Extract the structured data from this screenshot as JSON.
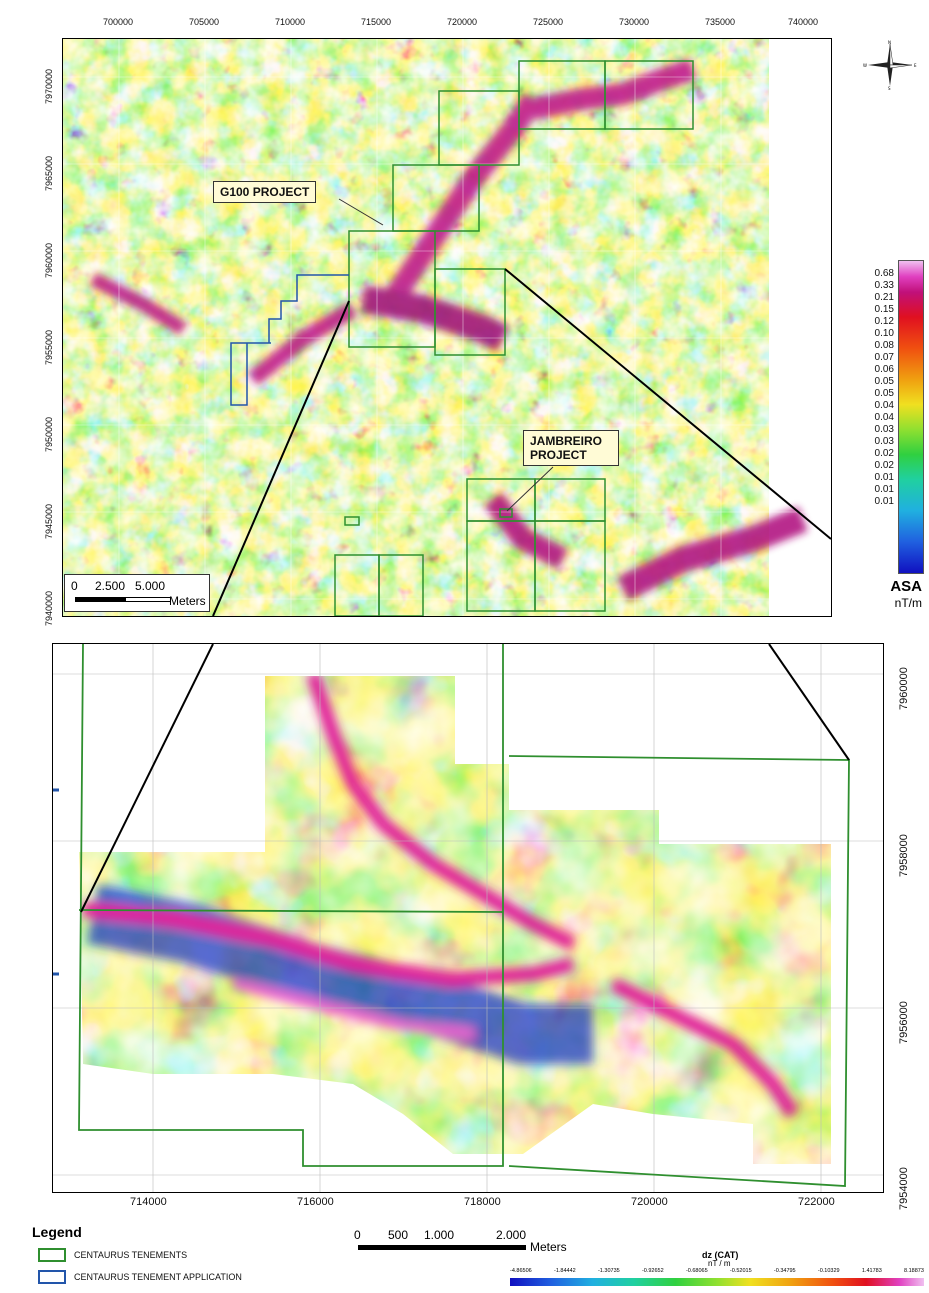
{
  "top_map": {
    "x_ticks": [
      "700000",
      "705000",
      "710000",
      "715000",
      "720000",
      "725000",
      "730000",
      "735000",
      "740000"
    ],
    "y_ticks": [
      "7970000",
      "7965000",
      "7960000",
      "7955000",
      "7950000",
      "7945000",
      "7940000"
    ],
    "label_g100": "G100 PROJECT",
    "label_jambreiro": "JAMBREIRO PROJECT",
    "scalebar": {
      "v0": "0",
      "v1": "2.500",
      "v2": "5.000",
      "unit": "Meters"
    },
    "colorbar": {
      "values": [
        "0.68",
        "0.33",
        "0.21",
        "0.15",
        "0.12",
        "0.10",
        "0.08",
        "0.07",
        "0.06",
        "0.05",
        "0.05",
        "0.04",
        "0.04",
        "0.03",
        "0.03",
        "0.02",
        "0.02",
        "0.01",
        "0.01",
        "0.01"
      ],
      "title": "ASA",
      "unit": "nT/m"
    }
  },
  "bottom_map": {
    "x_ticks": [
      "714000",
      "716000",
      "718000",
      "720000",
      "722000"
    ],
    "y_ticks": [
      "7960000",
      "7958000",
      "7956000",
      "7954000"
    ],
    "scalebar": {
      "v0": "0",
      "v1": "500",
      "v2": "1.000",
      "v3": "2.000",
      "unit": "Meters"
    }
  },
  "legend": {
    "title": "Legend",
    "items": [
      {
        "label": "CENTAURUS TENEMENTS",
        "color": "#2f8f2f"
      },
      {
        "label": "CENTAURUS TENEMENT APPLICATION",
        "color": "#2255aa"
      }
    ]
  },
  "dz_bar": {
    "title": "dz (CAT)",
    "unit": "nT / m",
    "values": [
      "-4.86506",
      "-1.84442",
      "-1.30735",
      "-0.92652",
      "-0.68065",
      "-0.52015",
      "-0.34795",
      "-0.10329",
      "1.41783",
      "8.18873"
    ]
  },
  "colors": {
    "tenement": "#2f8f2f",
    "application": "#2255aa"
  },
  "compass": "compass-rose-icon"
}
